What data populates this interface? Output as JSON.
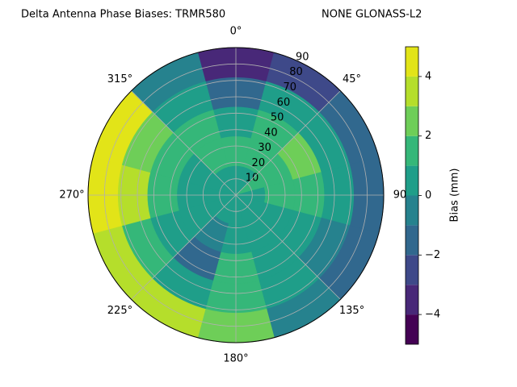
{
  "chart_data": {
    "type": "polar-contour",
    "title": "Delta Antenna Phase Biases: TRMR580",
    "subtitle": "NONE GLONASS-L2",
    "colorbar_label": "Bias (mm)",
    "rlim": [
      0,
      90
    ],
    "rticks": [
      10,
      20,
      30,
      40,
      50,
      60,
      70,
      80,
      90
    ],
    "thetaticks": [
      {
        "value": 0,
        "label": "0°"
      },
      {
        "value": 45,
        "label": "45°"
      },
      {
        "value": 90,
        "label": "90"
      },
      {
        "value": 135,
        "label": "135°"
      },
      {
        "value": 180,
        "label": "180°"
      },
      {
        "value": 225,
        "label": "225°"
      },
      {
        "value": 270,
        "label": "270°"
      },
      {
        "value": 315,
        "label": "315°"
      }
    ],
    "clim": [
      -5,
      5
    ],
    "cticks": [
      {
        "value": -4,
        "label": "−4"
      },
      {
        "value": -2,
        "label": "−2"
      },
      0,
      2,
      4
    ],
    "levels": [
      -5,
      -4,
      -3,
      -2,
      -1,
      0,
      1,
      2,
      3,
      4,
      5
    ],
    "colors": [
      "#440154",
      "#482878",
      "#3e4989",
      "#31688e",
      "#26828e",
      "#1f9e89",
      "#35b779",
      "#6ece58",
      "#b5de2b",
      "#e2e418"
    ],
    "azimuths": [
      0,
      30,
      60,
      90,
      120,
      150,
      180,
      210,
      240,
      270,
      300,
      330
    ],
    "radii": [
      9,
      27,
      45,
      63,
      81
    ],
    "values": [
      [
        0.5,
        1,
        0,
        -2,
        -4
      ],
      [
        0.5,
        1,
        1.5,
        0,
        -3
      ],
      [
        1,
        1.5,
        2,
        0,
        -2
      ],
      [
        0.5,
        1.5,
        1,
        0,
        -2
      ],
      [
        0,
        0.5,
        0,
        -1,
        -2
      ],
      [
        0,
        0.5,
        0,
        0.5,
        -1
      ],
      [
        0,
        0.5,
        1,
        1.5,
        2
      ],
      [
        0,
        -1,
        -1.5,
        0.5,
        3
      ],
      [
        0,
        0,
        0.5,
        1.5,
        3
      ],
      [
        0,
        0.5,
        1.5,
        3,
        4.5
      ],
      [
        0,
        0.5,
        1.5,
        2.5,
        4.5
      ],
      [
        0,
        1,
        1,
        0,
        -1
      ]
    ],
    "grid": true
  }
}
